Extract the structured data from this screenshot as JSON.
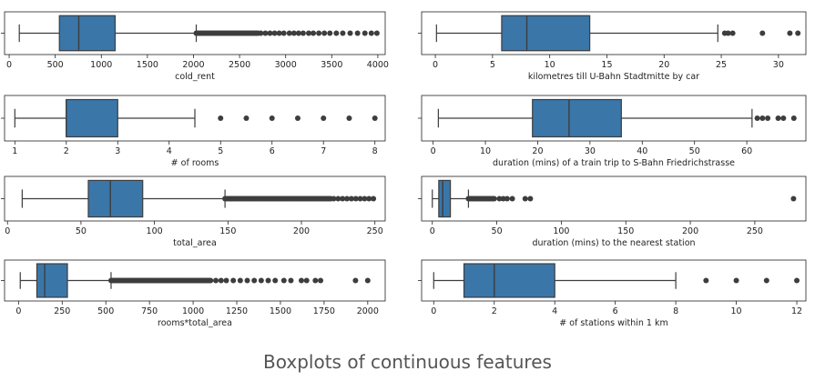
{
  "caption": "Boxplots of continuous features",
  "style": {
    "box_fill": "#3a76a8",
    "line_color": "#3d3d3d",
    "outlier_color": "#3d3d3d"
  },
  "chart_data": [
    {
      "type": "boxplot",
      "xlabel": "cold_rent",
      "xlim": [
        -50,
        4080
      ],
      "ticks": [
        0,
        500,
        1000,
        1500,
        2000,
        2500,
        3000,
        3500,
        4000
      ],
      "tick_labels": [
        "0",
        "500",
        "1000",
        "1500",
        "2000",
        "2500",
        "3000",
        "3500",
        "4000"
      ],
      "whisker_low": 110,
      "q1": 545,
      "median": 755,
      "q3": 1150,
      "whisker_high": 2030,
      "outliers": {
        "dense_range": [
          2030,
          2700
        ],
        "points": [
          2730,
          2780,
          2830,
          2880,
          2930,
          2980,
          3040,
          3090,
          3140,
          3190,
          3250,
          3300,
          3360,
          3420,
          3480,
          3550,
          3620,
          3700,
          3780,
          3860,
          3930,
          3990
        ]
      }
    },
    {
      "type": "boxplot",
      "xlabel": "kilometres till U-Bahn Stadtmitte by car",
      "xlim": [
        -1.2,
        32.4
      ],
      "ticks": [
        0,
        5,
        10,
        15,
        20,
        25,
        30
      ],
      "tick_labels": [
        "0",
        "5",
        "10",
        "15",
        "20",
        "25",
        "30"
      ],
      "whisker_low": 0.1,
      "q1": 5.8,
      "median": 8.0,
      "q3": 13.5,
      "whisker_high": 24.7,
      "outliers": {
        "points": [
          25.3,
          25.6,
          26.0,
          28.6,
          31.0,
          31.7
        ]
      }
    },
    {
      "type": "boxplot",
      "xlabel": "# of rooms",
      "xlim": [
        0.8,
        8.2
      ],
      "ticks": [
        1,
        2,
        3,
        4,
        5,
        6,
        7,
        8
      ],
      "tick_labels": [
        "1",
        "2",
        "3",
        "4",
        "5",
        "6",
        "7",
        "8"
      ],
      "whisker_low": 1,
      "q1": 2,
      "median": 2,
      "q3": 3,
      "whisker_high": 4.5,
      "outliers": {
        "points": [
          5,
          5.5,
          6,
          6.5,
          7,
          7.5,
          8
        ]
      }
    },
    {
      "type": "boxplot",
      "xlabel": "duration (mins) of a train trip to S-Bahn Friedrichstrasse",
      "xlim": [
        -2.2,
        71.3
      ],
      "ticks": [
        0,
        10,
        20,
        30,
        40,
        50,
        60
      ],
      "tick_labels": [
        "0",
        "10",
        "20",
        "30",
        "40",
        "50",
        "60"
      ],
      "whisker_low": 1,
      "q1": 19,
      "median": 26,
      "q3": 36,
      "whisker_high": 61,
      "outliers": {
        "points": [
          62,
          63,
          64,
          66,
          67,
          69
        ]
      }
    },
    {
      "type": "boxplot",
      "xlabel": "total_area",
      "xlim": [
        -2,
        257
      ],
      "ticks": [
        0,
        50,
        100,
        150,
        200,
        250
      ],
      "tick_labels": [
        "0",
        "50",
        "100",
        "150",
        "200",
        "250"
      ],
      "whisker_low": 10,
      "q1": 55,
      "median": 70,
      "q3": 92,
      "whisker_high": 148,
      "outliers": {
        "dense_range": [
          148,
          220
        ],
        "points": [
          222,
          225,
          228,
          231,
          234,
          237,
          240,
          243,
          246,
          249
        ]
      }
    },
    {
      "type": "boxplot",
      "xlabel": "duration (mins) to the nearest station",
      "xlim": [
        -8.3,
        289.6
      ],
      "ticks": [
        0,
        50,
        100,
        150,
        200,
        250
      ],
      "tick_labels": [
        "0",
        "50",
        "100",
        "150",
        "200",
        "250"
      ],
      "whisker_low": 0,
      "q1": 5,
      "median": 8,
      "q3": 14,
      "whisker_high": 28,
      "outliers": {
        "dense_range": [
          28,
          48
        ],
        "points": [
          52,
          55,
          58,
          62,
          72,
          76,
          280
        ]
      }
    },
    {
      "type": "boxplot",
      "xlabel": "rooms*total_area",
      "xlim": [
        -80,
        2100
      ],
      "ticks": [
        0,
        250,
        500,
        750,
        1000,
        1250,
        1500,
        1750,
        2000
      ],
      "tick_labels": [
        "0",
        "250",
        "500",
        "750",
        "1000",
        "1250",
        "1500",
        "1750",
        "2000"
      ],
      "whisker_low": 10,
      "q1": 105,
      "median": 150,
      "q3": 280,
      "whisker_high": 530,
      "outliers": {
        "dense_range": [
          530,
          1100
        ],
        "points": [
          1130,
          1160,
          1190,
          1230,
          1270,
          1310,
          1350,
          1390,
          1430,
          1470,
          1520,
          1560,
          1620,
          1650,
          1700,
          1730,
          1930,
          2000
        ]
      }
    },
    {
      "type": "boxplot",
      "xlabel": "# of stations within 1 km",
      "xlim": [
        -0.4,
        12.3
      ],
      "ticks": [
        0,
        2,
        4,
        6,
        8,
        10,
        12
      ],
      "tick_labels": [
        "0",
        "2",
        "4",
        "6",
        "8",
        "10",
        "12"
      ],
      "whisker_low": 0,
      "q1": 1,
      "median": 2,
      "q3": 4,
      "whisker_high": 8,
      "outliers": {
        "points": [
          9,
          10,
          11,
          12
        ]
      }
    }
  ]
}
